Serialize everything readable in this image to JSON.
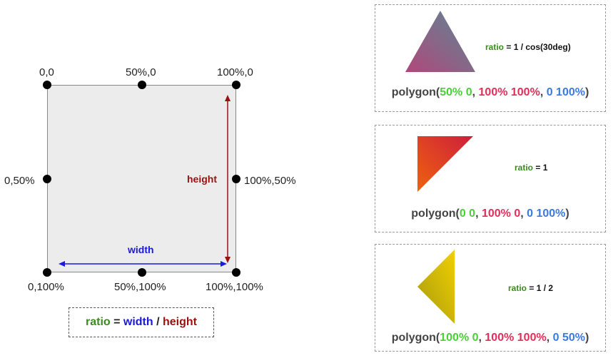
{
  "corner_labels": {
    "top_left": "0,0",
    "top_mid": "50%,0",
    "top_right": "100%,0",
    "mid_left": "0,50%",
    "mid_right": "100%,50%",
    "bottom_left": "0,100%",
    "bottom_mid": "50%,100%",
    "bottom_right": "100%,100%"
  },
  "width_label": "width",
  "height_label": "height",
  "ratio_formula": {
    "ratio": "ratio",
    "eq": " = ",
    "width": "width",
    "slash": " / ",
    "height": "height"
  },
  "panels": [
    {
      "ratio_word": "ratio",
      "ratio_rest": " = 1 / cos(30deg)",
      "poly_open": "polygon(",
      "p1": "50% 0",
      "sep1": ", ",
      "p2": "100% 100%",
      "sep2": ", ",
      "p3": "0 100%",
      "poly_close": ")"
    },
    {
      "ratio_word": "ratio",
      "ratio_rest": " = 1",
      "poly_open": "polygon(",
      "p1": "0 0",
      "sep1": ", ",
      "p2": "100% 0",
      "sep2": ", ",
      "p3": "0 100%",
      "poly_close": ")"
    },
    {
      "ratio_word": "ratio",
      "ratio_rest": " = 1 / 2",
      "poly_open": "polygon(",
      "p1": "100% 0",
      "sep1": ", ",
      "p2": "100% 100%",
      "sep2": ", ",
      "p3": "0 50%",
      "poly_close": ")"
    }
  ],
  "colors": {
    "green": "#3a8a20",
    "light_green": "#4ccf3a",
    "pink": "#e0305a",
    "blue": "#1a1ad8",
    "light_blue": "#3b7be0",
    "dark_red": "#9b0f0f"
  }
}
